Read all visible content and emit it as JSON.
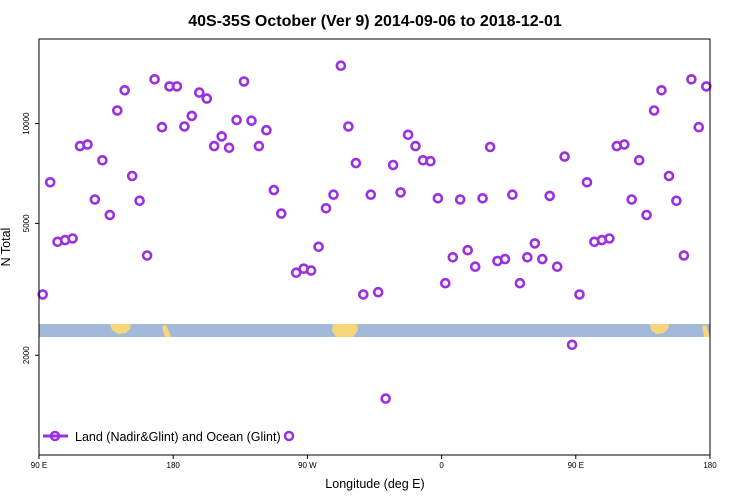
{
  "chart_data": {
    "type": "scatter",
    "title": "40S-35S October (Ver 9)   2014-09-06 to 2018-12-01",
    "xlabel": "Longitude (deg E)",
    "ylabel": "N Total",
    "x_ticks": [
      {
        "lon": 90,
        "label": "90 E"
      },
      {
        "lon": 180,
        "label": "180"
      },
      {
        "lon": 270,
        "label": "90 W"
      },
      {
        "lon": 360,
        "label": "0"
      },
      {
        "lon": 450,
        "label": "90 E"
      },
      {
        "lon": 540,
        "label": "180"
      }
    ],
    "xlim": [
      90,
      540
    ],
    "y_scale": "log",
    "y_ticks": [
      {
        "value": 2000,
        "label": "2000"
      },
      {
        "value": 5000,
        "label": "5000"
      },
      {
        "value": 10000,
        "label": "10000"
      }
    ],
    "ylim": [
      1000,
      18000
    ],
    "legend": {
      "label": "Land (Nadir&Glint) and Ocean (Glint)",
      "position": "bottom-left"
    },
    "colors": {
      "marker": "#9b30e0",
      "ocean_band": "#a3b9da",
      "land": "#f5d67a"
    },
    "series": [
      {
        "points": [
          [
            92.5,
            3050
          ],
          [
            97.5,
            6650
          ],
          [
            102.5,
            4400
          ],
          [
            107.5,
            4450
          ],
          [
            112.5,
            4500
          ],
          [
            117.5,
            8550
          ],
          [
            122.5,
            8650
          ],
          [
            127.5,
            5900
          ],
          [
            132.5,
            7750
          ],
          [
            137.5,
            5300
          ],
          [
            142.5,
            10950
          ],
          [
            147.5,
            12600
          ],
          [
            152.5,
            6950
          ],
          [
            157.5,
            5850
          ],
          [
            162.5,
            4000
          ],
          [
            167.5,
            13600
          ],
          [
            172.5,
            9750
          ],
          [
            177.5,
            12950
          ],
          [
            182.5,
            12950
          ],
          [
            187.5,
            9800
          ],
          [
            192.5,
            10550
          ],
          [
            197.5,
            12400
          ],
          [
            202.5,
            11900
          ],
          [
            207.5,
            8550
          ],
          [
            212.5,
            9150
          ],
          [
            217.5,
            8450
          ],
          [
            222.5,
            10250
          ],
          [
            227.5,
            13400
          ],
          [
            232.5,
            10200
          ],
          [
            237.5,
            8550
          ],
          [
            242.5,
            9550
          ],
          [
            247.5,
            6300
          ],
          [
            252.5,
            5350
          ],
          [
            262.5,
            3550
          ],
          [
            267.5,
            3650
          ],
          [
            272.5,
            3600
          ],
          [
            277.5,
            4250
          ],
          [
            282.5,
            5550
          ],
          [
            287.5,
            6100
          ],
          [
            292.5,
            14950
          ],
          [
            297.5,
            9800
          ],
          [
            302.5,
            7600
          ],
          [
            307.5,
            3050
          ],
          [
            312.5,
            6100
          ],
          [
            317.5,
            3100
          ],
          [
            322.5,
            1480
          ],
          [
            327.5,
            7500
          ],
          [
            332.5,
            6200
          ],
          [
            337.5,
            9250
          ],
          [
            342.5,
            8550
          ],
          [
            347.5,
            7750
          ],
          [
            352.5,
            7700
          ],
          [
            357.5,
            5950
          ],
          [
            362.5,
            3300
          ],
          [
            367.5,
            3950
          ],
          [
            372.5,
            5900
          ],
          [
            377.5,
            4150
          ],
          [
            382.5,
            3700
          ],
          [
            387.5,
            5950
          ],
          [
            392.5,
            8500
          ],
          [
            397.5,
            3850
          ],
          [
            402.5,
            3900
          ],
          [
            407.5,
            6100
          ],
          [
            412.5,
            3300
          ],
          [
            417.5,
            3950
          ],
          [
            422.5,
            4350
          ],
          [
            427.5,
            3900
          ],
          [
            432.5,
            6050
          ],
          [
            437.5,
            3700
          ],
          [
            442.5,
            7950
          ],
          [
            447.5,
            2150
          ],
          [
            452.5,
            3050
          ],
          [
            457.5,
            6650
          ],
          [
            462.5,
            4400
          ],
          [
            467.5,
            4450
          ],
          [
            472.5,
            4500
          ],
          [
            477.5,
            8550
          ],
          [
            482.5,
            8650
          ],
          [
            487.5,
            5900
          ],
          [
            492.5,
            7750
          ],
          [
            497.5,
            5300
          ],
          [
            502.5,
            10950
          ],
          [
            507.5,
            12600
          ],
          [
            512.5,
            6950
          ],
          [
            517.5,
            5850
          ],
          [
            522.5,
            4000
          ],
          [
            527.5,
            13600
          ],
          [
            532.5,
            9750
          ],
          [
            537.5,
            12950
          ]
        ]
      }
    ]
  }
}
